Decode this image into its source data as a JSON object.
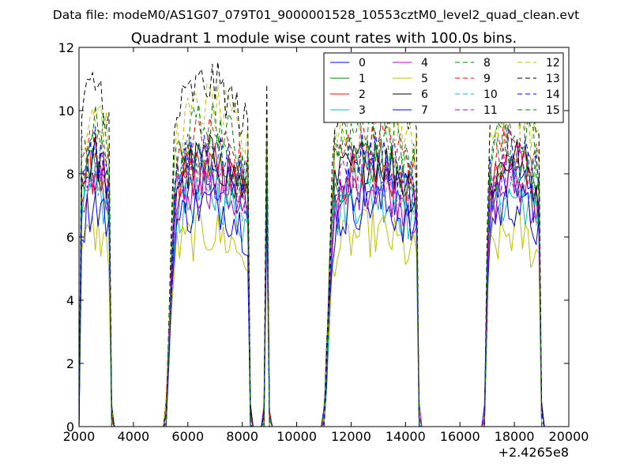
{
  "chart_data": {
    "type": "line",
    "suptitle": "Data file: modeM0/AS1G07_079T01_9000001528_10553cztM0_level2_quad_clean.evt",
    "title": "Quadrant 1 module wise count rates with 100.0s bins.",
    "xlabel": "",
    "ylabel": "",
    "x_offset_label": "+2.4265e8",
    "xlim": [
      2000,
      20000
    ],
    "ylim": [
      0,
      12
    ],
    "xticks": [
      2000,
      4000,
      6000,
      8000,
      10000,
      12000,
      14000,
      16000,
      18000,
      20000
    ],
    "xtick_labels": [
      "2000",
      "4000",
      "6000",
      "8000",
      "10000",
      "12000",
      "14000",
      "16000",
      "18000",
      "20000"
    ],
    "yticks": [
      0,
      2,
      4,
      6,
      8,
      10,
      12
    ],
    "ytick_labels": [
      "0",
      "2",
      "4",
      "6",
      "8",
      "10",
      "12"
    ],
    "grid": false,
    "legend_position": "top-right",
    "legend_columns": 4,
    "segments": [
      {
        "x_start": 2000,
        "x_end": 3200,
        "ramp": 0.3
      },
      {
        "x_start": 5200,
        "x_end": 8300,
        "ramp": 0.5
      },
      {
        "x_start": 8800,
        "x_end": 9000,
        "ramp": 0.1
      },
      {
        "x_start": 11000,
        "x_end": 14500,
        "ramp": 0.5
      },
      {
        "x_start": 16900,
        "x_end": 19000,
        "ramp": 0.4
      }
    ],
    "series": [
      {
        "name": "0",
        "color": "#0000ff",
        "dash": "solid",
        "level": 6.6
      },
      {
        "name": "1",
        "color": "#008000",
        "dash": "solid",
        "level": 7.1
      },
      {
        "name": "2",
        "color": "#ff0000",
        "dash": "solid",
        "level": 6.9
      },
      {
        "name": "3",
        "color": "#00bfbf",
        "dash": "solid",
        "level": 6.2
      },
      {
        "name": "4",
        "color": "#bf00bf",
        "dash": "solid",
        "level": 6.5
      },
      {
        "name": "5",
        "color": "#bfbf00",
        "dash": "solid",
        "level": 5.2
      },
      {
        "name": "6",
        "color": "#000000",
        "dash": "solid",
        "level": 7.2
      },
      {
        "name": "7",
        "color": "#0000ff",
        "dash": "solid",
        "level": 6.0
      },
      {
        "name": "8",
        "color": "#008000",
        "dash": "dashed",
        "level": 7.6
      },
      {
        "name": "9",
        "color": "#ff0000",
        "dash": "dashed",
        "level": 7.8
      },
      {
        "name": "10",
        "color": "#00bfbf",
        "dash": "dashed",
        "level": 6.8
      },
      {
        "name": "11",
        "color": "#bf00bf",
        "dash": "dashed",
        "level": 7.0
      },
      {
        "name": "12",
        "color": "#bfbf00",
        "dash": "dashed",
        "level": 8.6
      },
      {
        "name": "13",
        "color": "#000000",
        "dash": "dashed",
        "level": 9.2
      },
      {
        "name": "14",
        "color": "#0000ff",
        "dash": "dashed",
        "level": 7.4
      },
      {
        "name": "15",
        "color": "#008000",
        "dash": "dashed",
        "level": 8.1
      }
    ]
  }
}
